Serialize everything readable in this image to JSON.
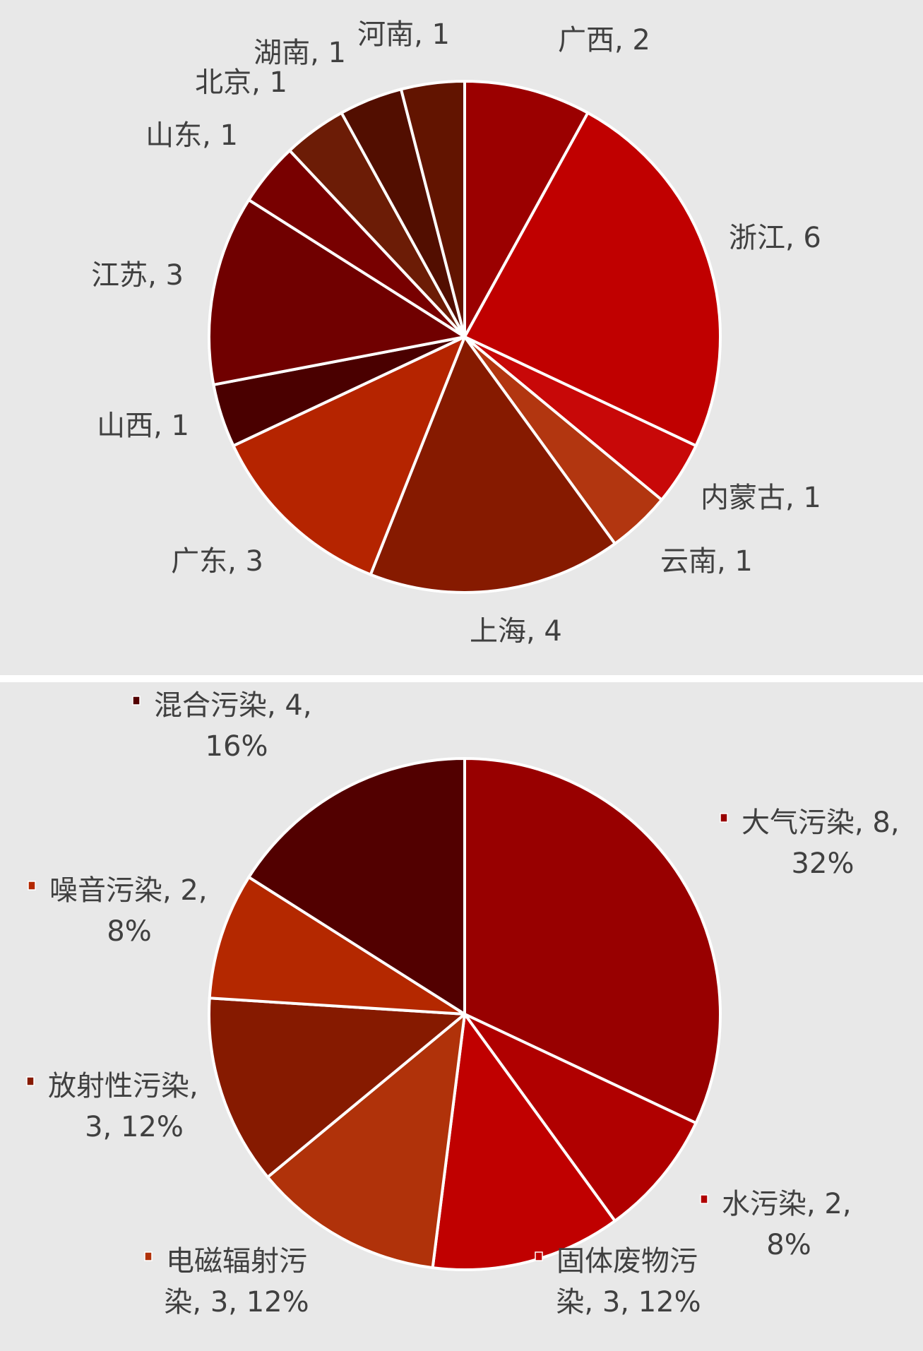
{
  "chart_data": [
    {
      "type": "pie",
      "title": "",
      "start_angle_deg": 0,
      "direction": "clockwise",
      "slices": [
        {
          "label": "广西, 2",
          "name": "广西",
          "value": 2,
          "color": "#9b0000"
        },
        {
          "label": "浙江, 6",
          "name": "浙江",
          "value": 6,
          "color": "#c00000"
        },
        {
          "label": "内蒙古, 1",
          "name": "内蒙古",
          "value": 1,
          "color": "#c80808"
        },
        {
          "label": "云南, 1",
          "name": "云南",
          "value": 1,
          "color": "#b23610"
        },
        {
          "label": "上海, 4",
          "name": "上海",
          "value": 4,
          "color": "#861a00"
        },
        {
          "label": "广东, 3",
          "name": "广东",
          "value": 3,
          "color": "#b52400"
        },
        {
          "label": "山西, 1",
          "name": "山西",
          "value": 1,
          "color": "#4a0000"
        },
        {
          "label": "江苏, 3",
          "name": "江苏",
          "value": 3,
          "color": "#700000"
        },
        {
          "label": "山东, 1",
          "name": "山东",
          "value": 1,
          "color": "#780000"
        },
        {
          "label": "北京, 1",
          "name": "北京",
          "value": 1,
          "color": "#6c1c06"
        },
        {
          "label": "湖南, 1",
          "name": "湖南",
          "value": 1,
          "color": "#520e00"
        },
        {
          "label": "河南, 1",
          "name": "河南",
          "value": 1,
          "color": "#621400"
        }
      ]
    },
    {
      "type": "pie",
      "title": "",
      "start_angle_deg": 0,
      "direction": "clockwise",
      "legend_markers": true,
      "slices": [
        {
          "lines": [
            "大气污染, 8,",
            "32%"
          ],
          "name": "大气污染",
          "value": 8,
          "percent": 32,
          "color": "#980000"
        },
        {
          "lines": [
            "水污染, 2,",
            "8%"
          ],
          "name": "水污染",
          "value": 2,
          "percent": 8,
          "color": "#b00000"
        },
        {
          "lines": [
            "固体废物污",
            "染, 3, 12%"
          ],
          "name": "固体废物污染",
          "value": 3,
          "percent": 12,
          "color": "#c00000"
        },
        {
          "lines": [
            "电磁辐射污",
            "染, 3, 12%"
          ],
          "name": "电磁辐射污染",
          "value": 3,
          "percent": 12,
          "color": "#b0320a"
        },
        {
          "lines": [
            "放射性污染,",
            "3, 12%"
          ],
          "name": "放射性污染",
          "value": 3,
          "percent": 12,
          "color": "#861a00"
        },
        {
          "lines": [
            "噪音污染, 2,",
            "8%"
          ],
          "name": "噪音污染",
          "value": 2,
          "percent": 8,
          "color": "#b42800"
        },
        {
          "lines": [
            "混合污染, 4,",
            "16%"
          ],
          "name": "混合污染",
          "value": 4,
          "percent": 16,
          "color": "#520000"
        }
      ]
    }
  ]
}
